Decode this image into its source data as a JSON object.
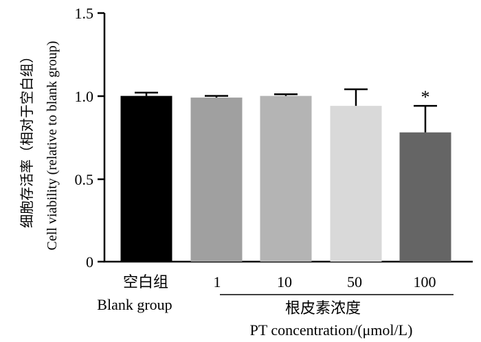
{
  "chart_data": {
    "type": "bar",
    "categories": [
      "空白组",
      "1",
      "10",
      "50",
      "100"
    ],
    "values": [
      1.0,
      0.99,
      1.0,
      0.94,
      0.78
    ],
    "errors": [
      0.02,
      0.01,
      0.01,
      0.1,
      0.16
    ],
    "bar_colors": [
      "#000000",
      "#a0a0a0",
      "#b4b4b4",
      "#d9d9d9",
      "#656565"
    ],
    "significance": [
      "",
      "",
      "",
      "",
      "*"
    ],
    "ylim": [
      0,
      1.5
    ],
    "yticks": [
      "0",
      "0.5",
      "1.0",
      "1.5"
    ],
    "ylabel_cn": "细胞存活率（相对于空白组）",
    "ylabel_en": "Cell viability (relative to blank group)",
    "first_category_en": "Blank group",
    "group_label_cn": "根皮素浓度",
    "group_label_en": "PT concentration/(μmol/L)",
    "grid": false
  }
}
